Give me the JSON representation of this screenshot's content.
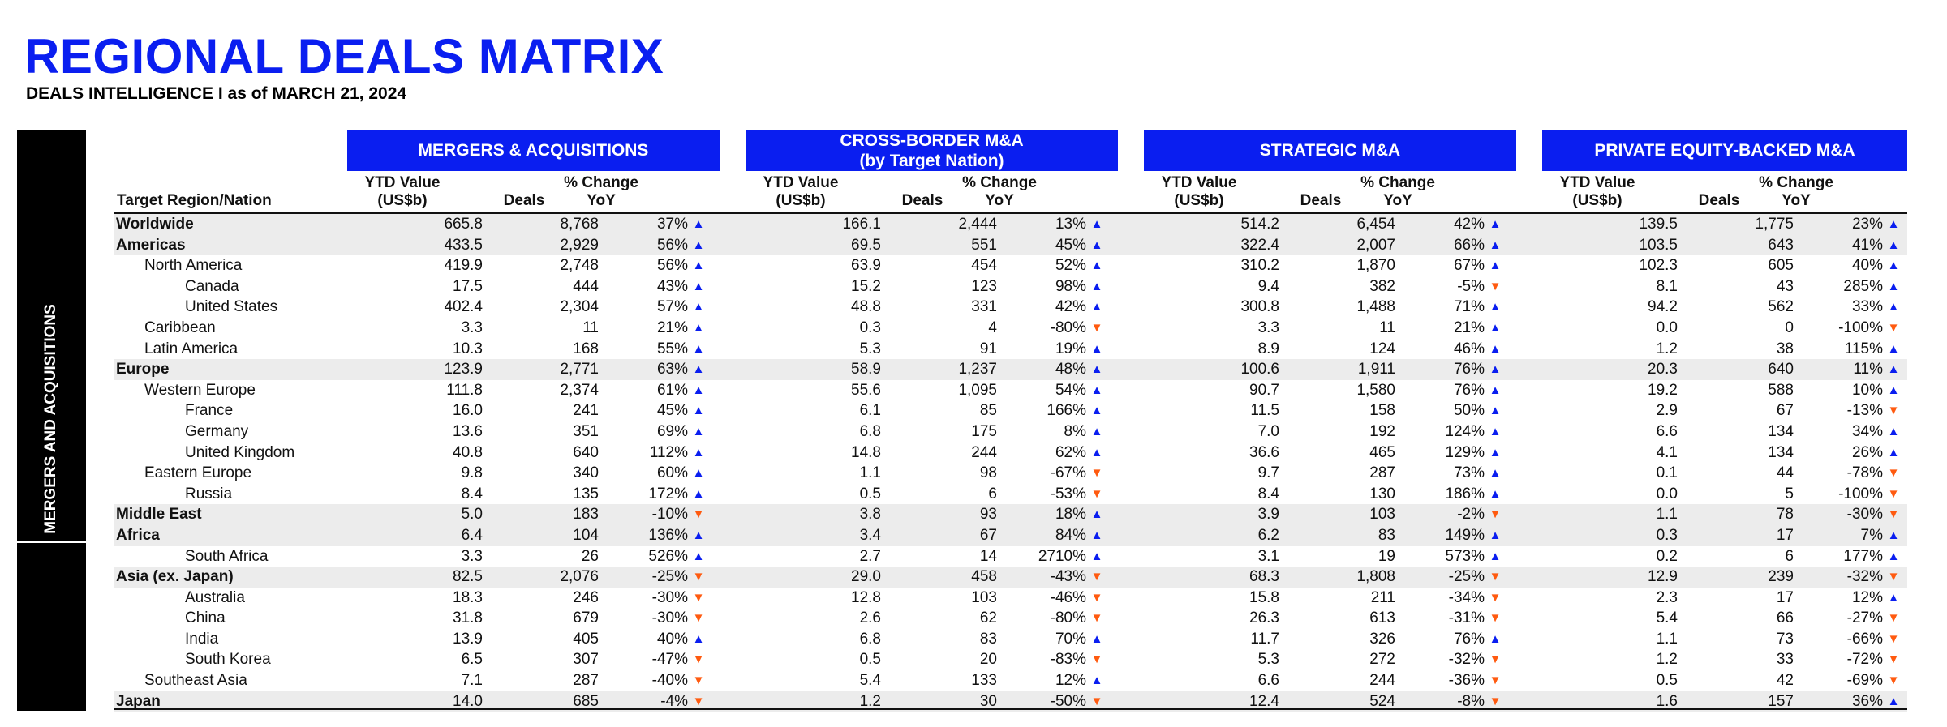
{
  "title": "REGIONAL DEALS MATRIX",
  "subtitle": "DEALS INTELLIGENCE  I as of MARCH 21, 2024",
  "side_label": "MERGERS AND ACQUISITIONS",
  "colors": {
    "accent": "#0a1ef0",
    "up": "#0a1ef0",
    "down": "#ff5a0f",
    "shade": "#ececec"
  },
  "icons": {
    "up": "▲",
    "down": "▼"
  },
  "row_header": "Target Region/Nation",
  "col_headers": {
    "value": "YTD Value\n(US$b)",
    "deals": "Deals",
    "change": "% Change\nYoY"
  },
  "sections": [
    {
      "title": "MERGERS & ACQUISITIONS"
    },
    {
      "title": "CROSS-BORDER M&A\n(by Target Nation)"
    },
    {
      "title": "STRATEGIC M&A"
    },
    {
      "title": "PRIVATE EQUITY-BACKED M&A"
    }
  ],
  "rows": [
    {
      "label": "Worldwide",
      "level": 0,
      "shade": true,
      "cells": [
        [
          "665.8",
          "8,768",
          "37%",
          "up"
        ],
        [
          "166.1",
          "2,444",
          "13%",
          "up"
        ],
        [
          "514.2",
          "6,454",
          "42%",
          "up"
        ],
        [
          "139.5",
          "1,775",
          "23%",
          "up"
        ]
      ]
    },
    {
      "label": "Americas",
      "level": 0,
      "shade": true,
      "cells": [
        [
          "433.5",
          "2,929",
          "56%",
          "up"
        ],
        [
          "69.5",
          "551",
          "45%",
          "up"
        ],
        [
          "322.4",
          "2,007",
          "66%",
          "up"
        ],
        [
          "103.5",
          "643",
          "41%",
          "up"
        ]
      ]
    },
    {
      "label": "North America",
      "level": 1,
      "shade": false,
      "cells": [
        [
          "419.9",
          "2,748",
          "56%",
          "up"
        ],
        [
          "63.9",
          "454",
          "52%",
          "up"
        ],
        [
          "310.2",
          "1,870",
          "67%",
          "up"
        ],
        [
          "102.3",
          "605",
          "40%",
          "up"
        ]
      ]
    },
    {
      "label": "Canada",
      "level": 2,
      "shade": false,
      "cells": [
        [
          "17.5",
          "444",
          "43%",
          "up"
        ],
        [
          "15.2",
          "123",
          "98%",
          "up"
        ],
        [
          "9.4",
          "382",
          "-5%",
          "down"
        ],
        [
          "8.1",
          "43",
          "285%",
          "up"
        ]
      ]
    },
    {
      "label": "United States",
      "level": 2,
      "shade": false,
      "cells": [
        [
          "402.4",
          "2,304",
          "57%",
          "up"
        ],
        [
          "48.8",
          "331",
          "42%",
          "up"
        ],
        [
          "300.8",
          "1,488",
          "71%",
          "up"
        ],
        [
          "94.2",
          "562",
          "33%",
          "up"
        ]
      ]
    },
    {
      "label": "Caribbean",
      "level": 1,
      "shade": false,
      "cells": [
        [
          "3.3",
          "11",
          "21%",
          "up"
        ],
        [
          "0.3",
          "4",
          "-80%",
          "down"
        ],
        [
          "3.3",
          "11",
          "21%",
          "up"
        ],
        [
          "0.0",
          "0",
          "-100%",
          "down"
        ]
      ]
    },
    {
      "label": "Latin America",
      "level": 1,
      "shade": false,
      "cells": [
        [
          "10.3",
          "168",
          "55%",
          "up"
        ],
        [
          "5.3",
          "91",
          "19%",
          "up"
        ],
        [
          "8.9",
          "124",
          "46%",
          "up"
        ],
        [
          "1.2",
          "38",
          "115%",
          "up"
        ]
      ]
    },
    {
      "label": "Europe",
      "level": 0,
      "shade": true,
      "cells": [
        [
          "123.9",
          "2,771",
          "63%",
          "up"
        ],
        [
          "58.9",
          "1,237",
          "48%",
          "up"
        ],
        [
          "100.6",
          "1,911",
          "76%",
          "up"
        ],
        [
          "20.3",
          "640",
          "11%",
          "up"
        ]
      ]
    },
    {
      "label": "Western Europe",
      "level": 1,
      "shade": false,
      "cells": [
        [
          "111.8",
          "2,374",
          "61%",
          "up"
        ],
        [
          "55.6",
          "1,095",
          "54%",
          "up"
        ],
        [
          "90.7",
          "1,580",
          "76%",
          "up"
        ],
        [
          "19.2",
          "588",
          "10%",
          "up"
        ]
      ]
    },
    {
      "label": "France",
      "level": 2,
      "shade": false,
      "cells": [
        [
          "16.0",
          "241",
          "45%",
          "up"
        ],
        [
          "6.1",
          "85",
          "166%",
          "up"
        ],
        [
          "11.5",
          "158",
          "50%",
          "up"
        ],
        [
          "2.9",
          "67",
          "-13%",
          "down"
        ]
      ]
    },
    {
      "label": "Germany",
      "level": 2,
      "shade": false,
      "cells": [
        [
          "13.6",
          "351",
          "69%",
          "up"
        ],
        [
          "6.8",
          "175",
          "8%",
          "up"
        ],
        [
          "7.0",
          "192",
          "124%",
          "up"
        ],
        [
          "6.6",
          "134",
          "34%",
          "up"
        ]
      ]
    },
    {
      "label": "United Kingdom",
      "level": 2,
      "shade": false,
      "cells": [
        [
          "40.8",
          "640",
          "112%",
          "up"
        ],
        [
          "14.8",
          "244",
          "62%",
          "up"
        ],
        [
          "36.6",
          "465",
          "129%",
          "up"
        ],
        [
          "4.1",
          "134",
          "26%",
          "up"
        ]
      ]
    },
    {
      "label": "Eastern Europe",
      "level": 1,
      "shade": false,
      "cells": [
        [
          "9.8",
          "340",
          "60%",
          "up"
        ],
        [
          "1.1",
          "98",
          "-67%",
          "down"
        ],
        [
          "9.7",
          "287",
          "73%",
          "up"
        ],
        [
          "0.1",
          "44",
          "-78%",
          "down"
        ]
      ]
    },
    {
      "label": "Russia",
      "level": 2,
      "shade": false,
      "cells": [
        [
          "8.4",
          "135",
          "172%",
          "up"
        ],
        [
          "0.5",
          "6",
          "-53%",
          "down"
        ],
        [
          "8.4",
          "130",
          "186%",
          "up"
        ],
        [
          "0.0",
          "5",
          "-100%",
          "down"
        ]
      ]
    },
    {
      "label": "Middle East",
      "level": 0,
      "shade": true,
      "cells": [
        [
          "5.0",
          "183",
          "-10%",
          "down"
        ],
        [
          "3.8",
          "93",
          "18%",
          "up"
        ],
        [
          "3.9",
          "103",
          "-2%",
          "down"
        ],
        [
          "1.1",
          "78",
          "-30%",
          "down"
        ]
      ]
    },
    {
      "label": "Africa",
      "level": 0,
      "shade": true,
      "cells": [
        [
          "6.4",
          "104",
          "136%",
          "up"
        ],
        [
          "3.4",
          "67",
          "84%",
          "up"
        ],
        [
          "6.2",
          "83",
          "149%",
          "up"
        ],
        [
          "0.3",
          "17",
          "7%",
          "up"
        ]
      ]
    },
    {
      "label": "South Africa",
      "level": 2,
      "shade": false,
      "cells": [
        [
          "3.3",
          "26",
          "526%",
          "up"
        ],
        [
          "2.7",
          "14",
          "2710%",
          "up"
        ],
        [
          "3.1",
          "19",
          "573%",
          "up"
        ],
        [
          "0.2",
          "6",
          "177%",
          "up"
        ]
      ]
    },
    {
      "label": "Asia (ex. Japan)",
      "level": 0,
      "shade": true,
      "cells": [
        [
          "82.5",
          "2,076",
          "-25%",
          "down"
        ],
        [
          "29.0",
          "458",
          "-43%",
          "down"
        ],
        [
          "68.3",
          "1,808",
          "-25%",
          "down"
        ],
        [
          "12.9",
          "239",
          "-32%",
          "down"
        ]
      ]
    },
    {
      "label": "Australia",
      "level": 2,
      "shade": false,
      "cells": [
        [
          "18.3",
          "246",
          "-30%",
          "down"
        ],
        [
          "12.8",
          "103",
          "-46%",
          "down"
        ],
        [
          "15.8",
          "211",
          "-34%",
          "down"
        ],
        [
          "2.3",
          "17",
          "12%",
          "up"
        ]
      ]
    },
    {
      "label": "China",
      "level": 2,
      "shade": false,
      "cells": [
        [
          "31.8",
          "679",
          "-30%",
          "down"
        ],
        [
          "2.6",
          "62",
          "-80%",
          "down"
        ],
        [
          "26.3",
          "613",
          "-31%",
          "down"
        ],
        [
          "5.4",
          "66",
          "-27%",
          "down"
        ]
      ]
    },
    {
      "label": "India",
      "level": 2,
      "shade": false,
      "cells": [
        [
          "13.9",
          "405",
          "40%",
          "up"
        ],
        [
          "6.8",
          "83",
          "70%",
          "up"
        ],
        [
          "11.7",
          "326",
          "76%",
          "up"
        ],
        [
          "1.1",
          "73",
          "-66%",
          "down"
        ]
      ]
    },
    {
      "label": "South Korea",
      "level": 2,
      "shade": false,
      "cells": [
        [
          "6.5",
          "307",
          "-47%",
          "down"
        ],
        [
          "0.5",
          "20",
          "-83%",
          "down"
        ],
        [
          "5.3",
          "272",
          "-32%",
          "down"
        ],
        [
          "1.2",
          "33",
          "-72%",
          "down"
        ]
      ]
    },
    {
      "label": "Southeast Asia",
      "level": 1,
      "shade": false,
      "cells": [
        [
          "7.1",
          "287",
          "-40%",
          "down"
        ],
        [
          "5.4",
          "133",
          "12%",
          "up"
        ],
        [
          "6.6",
          "244",
          "-36%",
          "down"
        ],
        [
          "0.5",
          "42",
          "-69%",
          "down"
        ]
      ]
    },
    {
      "label": "Japan",
      "level": 0,
      "shade": true,
      "cells": [
        [
          "14.0",
          "685",
          "-4%",
          "down"
        ],
        [
          "1.2",
          "30",
          "-50%",
          "down"
        ],
        [
          "12.4",
          "524",
          "-8%",
          "down"
        ],
        [
          "1.6",
          "157",
          "36%",
          "up"
        ]
      ]
    }
  ]
}
